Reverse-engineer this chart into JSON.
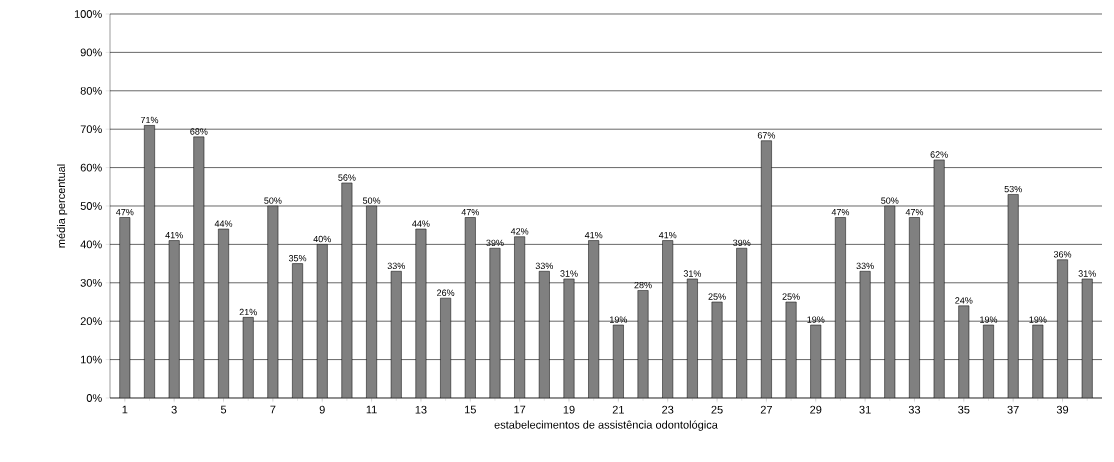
{
  "chart_data": {
    "type": "bar",
    "xlabel": "estabelecimentos de assistência odontológica",
    "ylabel": "média percentual",
    "categories": [
      "1",
      null,
      "3",
      null,
      "5",
      null,
      "7",
      null,
      "9",
      null,
      "11",
      null,
      "13",
      null,
      "15",
      null,
      "17",
      null,
      "19",
      null,
      "21",
      null,
      "23",
      null,
      "25",
      null,
      "27",
      null,
      "29",
      null,
      "31",
      null,
      "33",
      null,
      "35",
      null,
      "37",
      null,
      "39",
      null
    ],
    "values": [
      47,
      71,
      41,
      68,
      44,
      21,
      50,
      35,
      40,
      56,
      50,
      33,
      44,
      26,
      47,
      39,
      42,
      33,
      31,
      41,
      19,
      28,
      41,
      31,
      25,
      39,
      67,
      25,
      19,
      47,
      33,
      50,
      47,
      62,
      24,
      19,
      53,
      19,
      36,
      31
    ],
    "value_labels": [
      "47%",
      "71%",
      "41%",
      "68%",
      "44%",
      "21%",
      "50%",
      "35%",
      "40%",
      "56%",
      "50%",
      "33%",
      "44%",
      "26%",
      "47%",
      "39%",
      "42%",
      "33%",
      "31%",
      "41%",
      "19%",
      "28%",
      "41%",
      "31%",
      "25%",
      "39%",
      "67%",
      "25%",
      "19%",
      "47%",
      "33%",
      "50%",
      "47%",
      "62%",
      "24%",
      "19%",
      "53%",
      "19%",
      "36%",
      "31%"
    ],
    "color": "#808080",
    "ylim": [
      0,
      100
    ],
    "yticks": [
      {
        "value": 0,
        "label": "0%"
      },
      {
        "value": 10,
        "label": "10%"
      },
      {
        "value": 20,
        "label": "20%"
      },
      {
        "value": 30,
        "label": "30%"
      },
      {
        "value": 40,
        "label": "40%"
      },
      {
        "value": 50,
        "label": "50%"
      },
      {
        "value": 60,
        "label": "60%"
      },
      {
        "value": 70,
        "label": "70%"
      },
      {
        "value": 80,
        "label": "80%"
      },
      {
        "value": 90,
        "label": "90%"
      },
      {
        "value": 100,
        "label": "100%"
      }
    ],
    "grid": "y"
  }
}
